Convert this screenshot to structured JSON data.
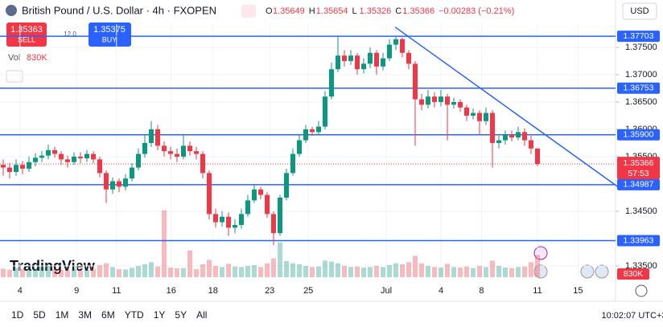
{
  "chart_data": {
    "type": "candlestick",
    "title": "British Pound / U.S. Dollar · 4h · FXOPEN",
    "ohlc_header": [
      {
        "label": "O",
        "value": "1.35649"
      },
      {
        "label": "H",
        "value": "1.35654"
      },
      {
        "label": "L",
        "value": "1.35326"
      },
      {
        "label": "C",
        "value": "1.35366"
      }
    ],
    "change": "−0.00283 (−0.21%)",
    "currency": "USD",
    "sell": {
      "price": "1.35363",
      "label": "SELL"
    },
    "buy": {
      "price": "1.35375",
      "label": "BUY"
    },
    "spread": "12.0",
    "up_color": "#089981",
    "down_color": "#f23645",
    "level_color": "#2962ff",
    "open": [
      1.3535,
      1.353,
      1.3522,
      1.3535,
      1.3528,
      1.354,
      1.3548,
      1.3552,
      1.3562,
      1.3555,
      1.3545,
      1.354,
      1.355,
      1.3547,
      1.3555,
      1.3545,
      1.352,
      1.349,
      1.3505,
      1.3495,
      1.351,
      1.353,
      1.3555,
      1.3575,
      1.36,
      1.357,
      1.356,
      1.3555,
      1.355,
      1.357,
      1.356,
      1.3555,
      1.352,
      1.3445,
      1.343,
      1.344,
      1.342,
      1.3425,
      1.3445,
      1.347,
      1.349,
      1.348,
      1.3445,
      1.341,
      1.3475,
      1.352,
      1.3555,
      1.358,
      1.36,
      1.3595,
      1.3605,
      1.366,
      1.371,
      1.3735,
      1.3725,
      1.3735,
      1.371,
      1.372,
      1.374,
      1.3715,
      1.373,
      1.3755,
      1.3765,
      1.374,
      1.372,
      1.3655,
      1.3645,
      1.366,
      1.365,
      1.366,
      1.3645,
      1.365,
      1.364,
      1.3625,
      1.363,
      1.3615,
      1.363,
      1.3575,
      1.358,
      1.359,
      1.3585,
      1.3595,
      1.358,
      1.35649
    ],
    "high": [
      1.3545,
      1.3538,
      1.3545,
      1.3542,
      1.355,
      1.3556,
      1.356,
      1.3572,
      1.3568,
      1.356,
      1.3552,
      1.3558,
      1.3558,
      1.3562,
      1.356,
      1.355,
      1.3525,
      1.3512,
      1.351,
      1.3518,
      1.3538,
      1.3565,
      1.359,
      1.3615,
      1.3608,
      1.3578,
      1.3568,
      1.3565,
      1.359,
      1.3578,
      1.3568,
      1.356,
      1.3525,
      1.3455,
      1.345,
      1.3448,
      1.3435,
      1.3455,
      1.348,
      1.3498,
      1.3495,
      1.3485,
      1.345,
      1.348,
      1.3528,
      1.3565,
      1.359,
      1.3608,
      1.3605,
      1.3615,
      1.367,
      1.3722,
      1.377,
      1.3745,
      1.3745,
      1.374,
      1.373,
      1.375,
      1.3745,
      1.374,
      1.3765,
      1.377,
      1.3768,
      1.3745,
      1.3725,
      1.3665,
      1.3672,
      1.3668,
      1.3672,
      1.3665,
      1.3658,
      1.3655,
      1.3645,
      1.3638,
      1.3635,
      1.364,
      1.3635,
      1.3588,
      1.3598,
      1.3598,
      1.3605,
      1.3602,
      1.3588,
      1.35654
    ],
    "low": [
      1.3515,
      1.351,
      1.3515,
      1.3518,
      1.3522,
      1.3532,
      1.354,
      1.3545,
      1.3548,
      1.3535,
      1.353,
      1.3535,
      1.3538,
      1.354,
      1.3538,
      1.3512,
      1.3465,
      1.3482,
      1.3485,
      1.3488,
      1.3505,
      1.3525,
      1.3548,
      1.3568,
      1.3562,
      1.355,
      1.3545,
      1.354,
      1.3545,
      1.3552,
      1.3545,
      1.351,
      1.3435,
      1.342,
      1.3422,
      1.3405,
      1.341,
      1.3418,
      1.344,
      1.3465,
      1.3472,
      1.3438,
      1.3388,
      1.3405,
      1.347,
      1.3515,
      1.355,
      1.3575,
      1.3588,
      1.359,
      1.36,
      1.3655,
      1.3705,
      1.3715,
      1.3718,
      1.37,
      1.3702,
      1.3712,
      1.37,
      1.3708,
      1.3725,
      1.3745,
      1.3732,
      1.371,
      1.357,
      1.3635,
      1.3638,
      1.364,
      1.3642,
      1.358,
      1.3638,
      1.3632,
      1.3615,
      1.3618,
      1.359,
      1.3608,
      1.353,
      1.3565,
      1.3572,
      1.3578,
      1.358,
      1.357,
      1.3555,
      1.35326
    ],
    "close": [
      1.353,
      1.3522,
      1.3535,
      1.3528,
      1.354,
      1.3548,
      1.3552,
      1.3562,
      1.3555,
      1.3545,
      1.354,
      1.355,
      1.3547,
      1.3555,
      1.3545,
      1.352,
      1.349,
      1.3505,
      1.3495,
      1.351,
      1.353,
      1.3555,
      1.3575,
      1.36,
      1.357,
      1.356,
      1.3555,
      1.355,
      1.357,
      1.356,
      1.3555,
      1.352,
      1.3445,
      1.343,
      1.344,
      1.342,
      1.3425,
      1.3445,
      1.347,
      1.349,
      1.348,
      1.3445,
      1.341,
      1.3475,
      1.352,
      1.3555,
      1.358,
      1.36,
      1.3595,
      1.3605,
      1.366,
      1.371,
      1.3735,
      1.3725,
      1.3735,
      1.371,
      1.372,
      1.374,
      1.3715,
      1.373,
      1.3755,
      1.3765,
      1.374,
      1.372,
      1.3655,
      1.3645,
      1.366,
      1.365,
      1.366,
      1.3645,
      1.365,
      1.364,
      1.3625,
      1.363,
      1.3615,
      1.363,
      1.3575,
      1.358,
      1.359,
      1.3585,
      1.3595,
      1.358,
      1.3565,
      1.35366
    ],
    "volume": {
      "name": "Vol",
      "last_label": "830K",
      "ylim": [
        0,
        3000000
      ],
      "values": [
        320000,
        280000,
        350000,
        300000,
        260000,
        310000,
        380000,
        420000,
        300000,
        280000,
        260000,
        300000,
        240000,
        280000,
        310000,
        450000,
        520000,
        380000,
        300000,
        290000,
        350000,
        420000,
        480000,
        560000,
        400000,
        2500000,
        360000,
        330000,
        340000,
        1000000,
        300000,
        480000,
        650000,
        420000,
        380000,
        500000,
        400000,
        380000,
        420000,
        450000,
        380000,
        520000,
        700000,
        1300000,
        600000,
        520000,
        480000,
        420000,
        380000,
        400000,
        620000,
        580000,
        520000,
        420000,
        380000,
        400000,
        360000,
        380000,
        420000,
        380000,
        450000,
        520000,
        480000,
        560000,
        800000,
        520000,
        420000,
        380000,
        360000,
        500000,
        380000,
        360000,
        400000,
        340000,
        420000,
        380000,
        620000,
        420000,
        360000,
        340000,
        380000,
        400000,
        560000,
        830000
      ]
    },
    "countdown": "57:53",
    "ylim": [
      1.33294,
      1.37926
    ],
    "yticks": [
      {
        "value": 1.375,
        "label": "1.37500"
      },
      {
        "value": 1.37,
        "label": "1.37000"
      },
      {
        "value": 1.365,
        "label": "1.36500"
      },
      {
        "value": 1.36,
        "label": "1.36000"
      },
      {
        "value": 1.355,
        "label": "1.35500"
      },
      {
        "value": 1.345,
        "label": "1.34500"
      },
      {
        "value": 1.335,
        "label": "1.33500"
      }
    ],
    "levels": [
      1.37703,
      1.36753,
      {
        "value": 1.359,
        "label": "1.35900"
      },
      1.34987,
      1.33963
    ],
    "trendline": {
      "x": [
        60.9,
        95.6
      ],
      "y": [
        1.3787,
        1.3494
      ]
    },
    "xlim": [
      -0.5,
      95.125
    ],
    "xticks": [
      {
        "value": 2.6,
        "label": "4"
      },
      {
        "value": 11.4,
        "label": "9"
      },
      {
        "value": 17.6,
        "label": "11"
      },
      {
        "value": 26.1,
        "label": "16"
      },
      {
        "value": 32.6,
        "label": "18"
      },
      {
        "value": 41.4,
        "label": "23"
      },
      {
        "value": 47.4,
        "label": "25"
      },
      {
        "value": 59.5,
        "label": "Jul"
      },
      {
        "value": 68,
        "label": "4"
      },
      {
        "value": 74.3,
        "label": "8"
      },
      {
        "value": 83,
        "label": "11"
      },
      {
        "value": 89.3,
        "label": "15"
      }
    ],
    "grid": true,
    "ranges": [
      "1D",
      "5D",
      "1M",
      "3M",
      "6M",
      "YTD",
      "1Y",
      "5Y",
      "All"
    ],
    "clock": "10:02:07 UTC+3",
    "brand": "TradingView"
  }
}
